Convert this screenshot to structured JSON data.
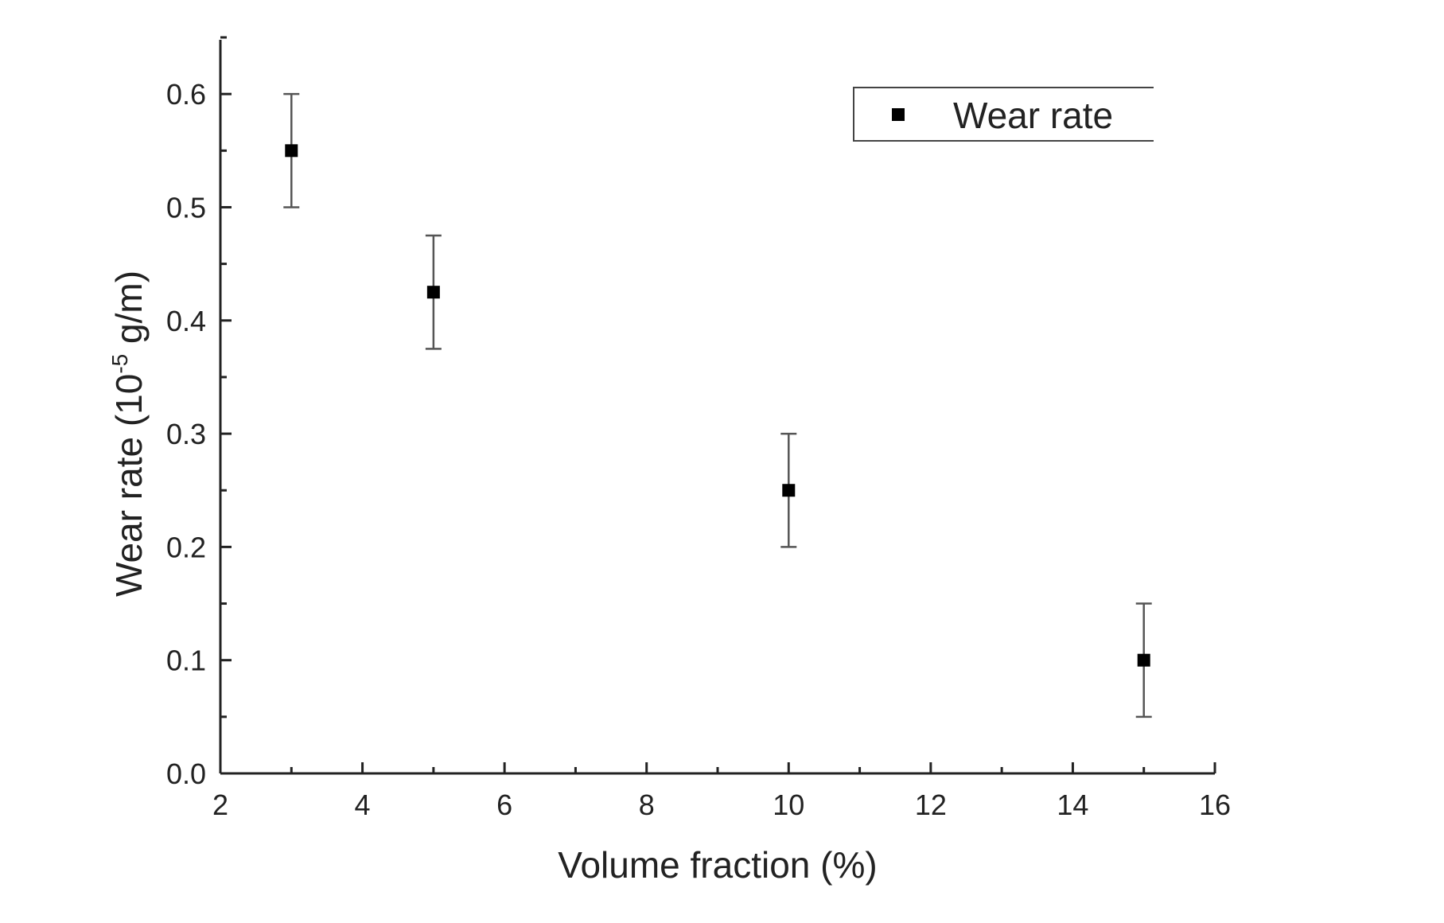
{
  "chart_data": {
    "type": "scatter",
    "xlabel": "Volume fraction (%)",
    "ylabel": {
      "prefix": "Wear rate (10",
      "superscript": "-5",
      "suffix": " g/m)"
    },
    "xlim": [
      2,
      16
    ],
    "ylim": [
      0.0,
      0.65
    ],
    "x_ticks": [
      2,
      4,
      6,
      8,
      10,
      12,
      14,
      16
    ],
    "x_tick_labels": [
      "2",
      "4",
      "6",
      "8",
      "10",
      "12",
      "14",
      "16"
    ],
    "y_ticks": [
      0.0,
      0.1,
      0.2,
      0.3,
      0.4,
      0.5,
      0.6
    ],
    "y_tick_labels": [
      "0.0",
      "0.1",
      "0.2",
      "0.3",
      "0.4",
      "0.5",
      "0.6"
    ],
    "grid": false,
    "legend_position": "top-right",
    "series": [
      {
        "name": "Wear rate",
        "marker": "square",
        "color": "#000000",
        "x": [
          3,
          5,
          10,
          15
        ],
        "y": [
          0.55,
          0.425,
          0.25,
          0.1
        ],
        "error_low": [
          0.5,
          0.375,
          0.2,
          0.05
        ],
        "error_high": [
          0.6,
          0.475,
          0.3,
          0.15
        ]
      }
    ]
  }
}
